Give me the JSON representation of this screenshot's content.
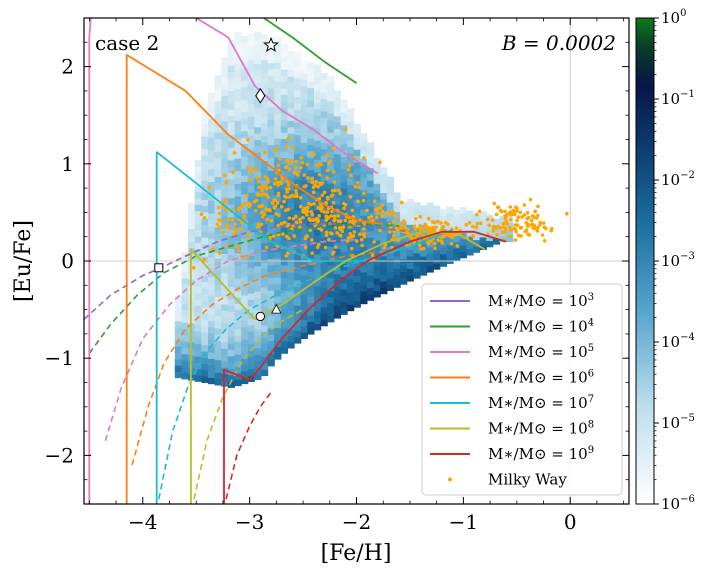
{
  "chart_data": {
    "type": "scatter",
    "title": "",
    "xlabel": "[Fe/H]",
    "ylabel": "[Eu/Fe]",
    "xlim": [
      -4.55,
      0.55
    ],
    "ylim": [
      -2.5,
      2.5
    ],
    "xticks": [
      -4,
      -3,
      -2,
      -1,
      0
    ],
    "yticks": [
      -2,
      -1,
      0,
      1,
      2
    ],
    "xtick_labels": [
      "−4",
      "−3",
      "−2",
      "−1",
      "0"
    ],
    "ytick_labels": [
      "−2",
      "−1",
      "0",
      "1",
      "2"
    ],
    "grid": "reference lines at [Fe/H]=0 and [Eu/Fe]=0",
    "annotations": {
      "case": "case 2",
      "param": "B = 0.0002"
    },
    "colorbar": {
      "range": [
        1e-06,
        1
      ],
      "scale": "log",
      "tick_labels": [
        {
          "base": "10",
          "exp": "0"
        },
        {
          "base": "10",
          "exp": "−1"
        },
        {
          "base": "10",
          "exp": "−2"
        },
        {
          "base": "10",
          "exp": "−3"
        },
        {
          "base": "10",
          "exp": "−4"
        },
        {
          "base": "10",
          "exp": "−5"
        },
        {
          "base": "10",
          "exp": "−6"
        }
      ],
      "colors": [
        "#ffffff",
        "#b9dcec",
        "#4e9fca",
        "#1a6b9e",
        "#0d2a66",
        "#0b3a2e",
        "#0f7a1e"
      ]
    },
    "legend_position": "lower-right",
    "series": [
      {
        "name": "M*/M☉ = 10^3",
        "label_base": "M∗/M⊙ = 10",
        "label_exp": "3",
        "color": "#9467bd",
        "x_start": -4.4,
        "solid": [],
        "dashed": [
          [
            -4.55,
            -0.6
          ],
          [
            -4.3,
            -0.35
          ],
          [
            -4.0,
            -0.15
          ],
          [
            -3.85,
            -0.08
          ],
          [
            -3.6,
            0.05
          ],
          [
            -3.3,
            0.2
          ],
          [
            -3.0,
            0.3
          ],
          [
            -2.6,
            0.38
          ],
          [
            -2.2,
            0.38
          ],
          [
            -1.8,
            0.34
          ],
          [
            -1.5,
            0.3
          ]
        ]
      },
      {
        "name": "M*/M☉ = 10^4",
        "label_base": "M∗/M⊙ = 10",
        "label_exp": "4",
        "color": "#2ca02c",
        "solid": [
          [
            -3.0,
            2.6
          ],
          [
            -2.6,
            2.3
          ],
          [
            -2.3,
            2.05
          ],
          [
            -2.0,
            1.83
          ]
        ],
        "dashed": [
          [
            -4.5,
            -0.95
          ],
          [
            -4.3,
            -0.65
          ],
          [
            -4.05,
            -0.35
          ],
          [
            -3.8,
            -0.12
          ],
          [
            -3.5,
            0.05
          ],
          [
            -3.1,
            0.18
          ],
          [
            -2.7,
            0.3
          ],
          [
            -2.3,
            0.36
          ],
          [
            -1.9,
            0.38
          ],
          [
            -1.6,
            0.36
          ]
        ]
      },
      {
        "name": "M*/M☉ = 10^5",
        "label_base": "M∗/M⊙ = 10",
        "label_exp": "5",
        "color": "#e377c2",
        "solid": [
          [
            -4.5,
            -2.5
          ],
          [
            -4.5,
            2.3
          ],
          [
            -4.48,
            2.6
          ]
        ],
        "solid2": [
          [
            -3.5,
            2.5
          ],
          [
            -3.2,
            2.3
          ],
          [
            -2.95,
            1.8
          ],
          [
            -2.7,
            1.55
          ],
          [
            -2.4,
            1.35
          ],
          [
            -2.1,
            1.1
          ],
          [
            -1.8,
            0.9
          ]
        ],
        "dashed": [
          [
            -4.35,
            -1.85
          ],
          [
            -4.2,
            -1.3
          ],
          [
            -4.0,
            -0.8
          ],
          [
            -3.75,
            -0.45
          ],
          [
            -3.5,
            -0.2
          ],
          [
            -3.2,
            0.0
          ],
          [
            -2.9,
            0.1
          ],
          [
            -2.6,
            0.15
          ],
          [
            -2.3,
            0.2
          ],
          [
            -2.0,
            0.22
          ]
        ]
      },
      {
        "name": "M*/M☉ = 10^6",
        "label_base": "M∗/M⊙ = 10",
        "label_exp": "6",
        "color": "#ff7f0e",
        "solid": [
          [
            -4.15,
            -2.5
          ],
          [
            -4.15,
            2.12
          ],
          [
            -3.6,
            1.75
          ],
          [
            -3.2,
            1.3
          ],
          [
            -2.9,
            1.05
          ],
          [
            -2.6,
            0.8
          ],
          [
            -2.3,
            0.58
          ],
          [
            -2.0,
            0.42
          ],
          [
            -1.75,
            0.38
          ]
        ],
        "dashed": [
          [
            -4.1,
            -2.1
          ],
          [
            -3.95,
            -1.5
          ],
          [
            -3.8,
            -1.05
          ],
          [
            -3.6,
            -0.7
          ],
          [
            -3.35,
            -0.45
          ],
          [
            -3.1,
            -0.28
          ],
          [
            -2.85,
            -0.15
          ],
          [
            -2.5,
            -0.05
          ],
          [
            -2.1,
            0.05
          ],
          [
            -1.75,
            0.1
          ]
        ]
      },
      {
        "name": "M*/M☉ = 10^7",
        "label_base": "M∗/M⊙ = 10",
        "label_exp": "7",
        "color": "#17becf",
        "solid": [
          [
            -3.87,
            -2.5
          ],
          [
            -3.87,
            1.12
          ],
          [
            -3.5,
            0.8
          ],
          [
            -3.1,
            0.45
          ],
          [
            -2.8,
            0.2
          ],
          [
            -2.4,
            0.0
          ],
          [
            -1.95,
            0.0
          ],
          [
            -1.5,
            0.15
          ],
          [
            -1.1,
            0.32
          ]
        ],
        "dashed": [
          [
            -3.85,
            -2.45
          ],
          [
            -3.72,
            -1.75
          ],
          [
            -3.58,
            -1.3
          ],
          [
            -3.42,
            -0.95
          ],
          [
            -3.22,
            -0.7
          ],
          [
            -3.0,
            -0.5
          ],
          [
            -2.75,
            -0.35
          ],
          [
            -2.45,
            -0.2
          ],
          [
            -2.1,
            -0.05
          ],
          [
            -1.8,
            0.05
          ]
        ]
      },
      {
        "name": "M*/M☉ = 10^8",
        "label_base": "M∗/M⊙ = 10",
        "label_exp": "8",
        "color": "#bcbd22",
        "solid": [
          [
            -3.55,
            -2.5
          ],
          [
            -3.55,
            0.12
          ],
          [
            -3.2,
            -0.3
          ],
          [
            -2.95,
            -0.6
          ],
          [
            -2.7,
            -0.45
          ],
          [
            -2.4,
            -0.22
          ],
          [
            -2.1,
            0.0
          ],
          [
            -1.75,
            0.18
          ],
          [
            -1.4,
            0.3
          ],
          [
            -1.05,
            0.28
          ],
          [
            -0.8,
            0.12
          ]
        ],
        "dashed": [
          [
            -3.52,
            -2.45
          ],
          [
            -3.4,
            -1.85
          ],
          [
            -3.25,
            -1.4
          ],
          [
            -3.08,
            -1.05
          ],
          [
            -2.9,
            -0.8
          ],
          [
            -2.7,
            -0.62
          ],
          [
            -2.5,
            -0.5
          ]
        ]
      },
      {
        "name": "M*/M☉ = 10^9",
        "label_base": "M∗/M⊙ = 10",
        "label_exp": "9",
        "color": "#d62728",
        "solid": [
          [
            -3.24,
            -2.5
          ],
          [
            -3.24,
            -1.12
          ],
          [
            -3.0,
            -1.22
          ],
          [
            -2.9,
            -1.1
          ],
          [
            -2.7,
            -0.8
          ],
          [
            -2.45,
            -0.5
          ],
          [
            -2.15,
            -0.2
          ],
          [
            -1.9,
            0.0
          ],
          [
            -1.5,
            0.2
          ],
          [
            -1.2,
            0.3
          ],
          [
            -0.9,
            0.3
          ],
          [
            -0.6,
            0.2
          ]
        ],
        "dashed": [
          [
            -3.22,
            -2.45
          ],
          [
            -3.12,
            -2.0
          ],
          [
            -3.0,
            -1.7
          ],
          [
            -2.9,
            -1.5
          ],
          [
            -2.8,
            -1.35
          ]
        ]
      },
      {
        "name": "Milky Way",
        "label_base": "Milky Way",
        "label_exp": "",
        "color": "#ffa500",
        "kind": "points"
      }
    ],
    "markers": [
      {
        "name": "star",
        "x": -2.8,
        "y": 2.22
      },
      {
        "name": "diamond",
        "x": -2.9,
        "y": 1.7
      },
      {
        "name": "square",
        "x": -3.85,
        "y": -0.07
      },
      {
        "name": "circle",
        "x": -2.9,
        "y": -0.57
      },
      {
        "name": "triangle",
        "x": -2.75,
        "y": -0.5
      }
    ]
  }
}
